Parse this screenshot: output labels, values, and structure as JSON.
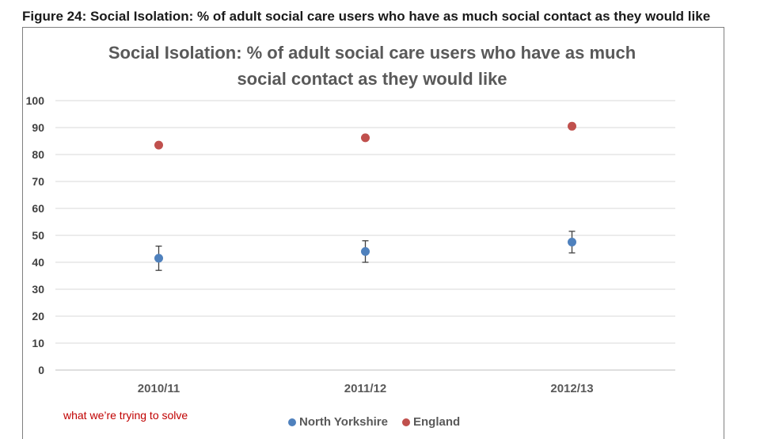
{
  "figure_caption": "Figure 24: Social Isolation: % of adult social care users who have as much social contact as they would like",
  "note": "what we’re trying to solve",
  "chart_data": {
    "type": "scatter",
    "title_line1": "Social Isolation: % of adult social care users who have as much",
    "title_line2": "social contact as they would like",
    "categories": [
      "2010/11",
      "2011/12",
      "2012/13"
    ],
    "ylim": [
      0,
      100
    ],
    "yticks": [
      0,
      10,
      20,
      30,
      40,
      50,
      60,
      70,
      80,
      90,
      100
    ],
    "grid": true,
    "legend_position": "bottom",
    "series": [
      {
        "name": "North Yorkshire",
        "color": "#4f81bd",
        "values": [
          41.5,
          44,
          47.5
        ],
        "error_low": [
          37,
          40,
          43.5
        ],
        "error_high": [
          46,
          48,
          51.5
        ]
      },
      {
        "name": "England",
        "color": "#c0504d",
        "values": [
          83.5,
          86.2,
          90.5
        ]
      }
    ]
  }
}
